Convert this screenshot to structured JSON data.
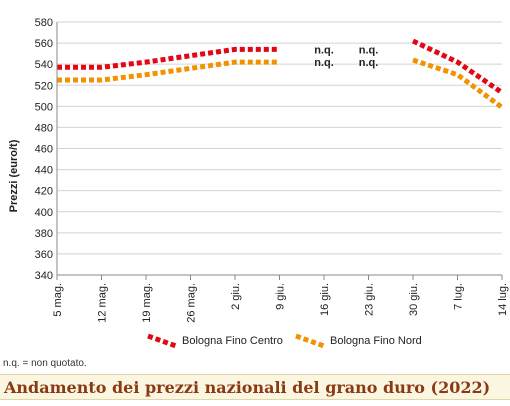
{
  "title": "Andamento dei prezzi nazionali del grano duro (2022)",
  "footnote": "n.q. = non quotato.",
  "chart_data": {
    "type": "line",
    "x": [
      "5 mag.",
      "12 mag.",
      "19 mag.",
      "26 mag.",
      "2 giu.",
      "9 giu.",
      "16 giu.",
      "23 giu.",
      "30 giu.",
      "7 lug.",
      "14 lug."
    ],
    "ylabel": "Prezzi (euro/t)",
    "xlabel": "",
    "ylim": [
      340,
      580
    ],
    "yticks": [
      340,
      360,
      380,
      400,
      420,
      440,
      460,
      480,
      500,
      520,
      540,
      560,
      580
    ],
    "grid": true,
    "legend_position": "bottom",
    "series": [
      {
        "name": "Bologna Fino Centro",
        "color": "#e30613",
        "values": [
          537,
          537,
          542,
          548,
          554,
          554,
          null,
          null,
          562,
          542,
          513
        ]
      },
      {
        "name": "Bologna Fino Nord",
        "color": "#f39200",
        "values": [
          525,
          525,
          530,
          536,
          542,
          542,
          null,
          null,
          544,
          530,
          499
        ]
      }
    ],
    "annotations": [
      {
        "text": "n.q.",
        "x": "16 giu.",
        "value": 554
      },
      {
        "text": "n.q.",
        "x": "16 giu.",
        "value": 542
      },
      {
        "text": "n.q.",
        "x": "23 giu.",
        "value": 554
      },
      {
        "text": "n.q.",
        "x": "23 giu.",
        "value": 542
      }
    ]
  }
}
